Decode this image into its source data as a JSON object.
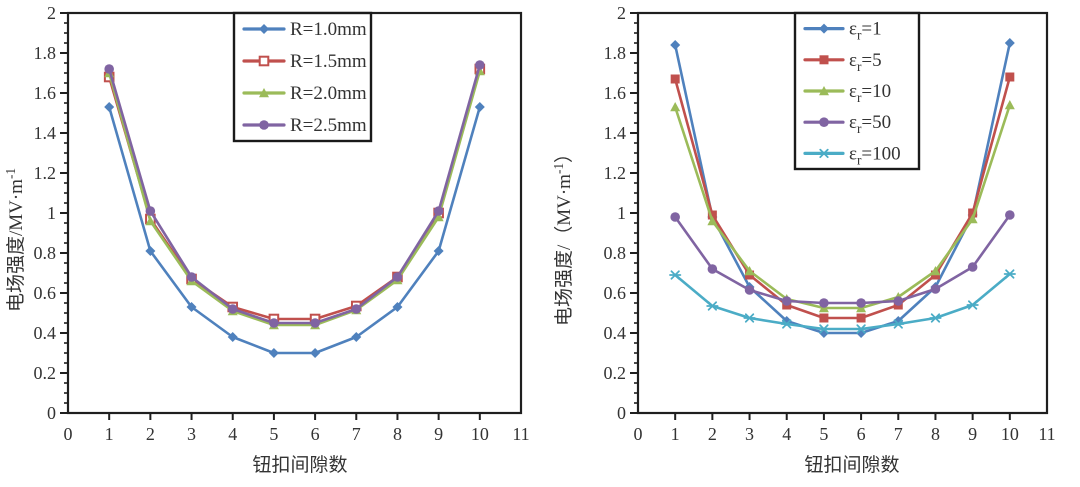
{
  "figure": {
    "background": "#ffffff",
    "axis_color": "#1f1f1f",
    "text_color": "#333333"
  },
  "chart_data": [
    {
      "id": "left-chart",
      "type": "line",
      "title": "",
      "xlabel": "钮扣间隙数",
      "ylabel": "电场强度/MV·m⁻¹",
      "ylabel_segments": [
        {
          "t": "电场强度/MV·m"
        },
        {
          "t": "-1",
          "sup": true
        }
      ],
      "xlim": [
        0,
        11
      ],
      "ylim": [
        0,
        2
      ],
      "xticks": [
        "0",
        "1",
        "2",
        "3",
        "4",
        "5",
        "6",
        "7",
        "8",
        "9",
        "10",
        "11"
      ],
      "yticks": [
        "0",
        "0.2",
        "0.4",
        "0.6",
        "0.8",
        "1",
        "1.2",
        "1.4",
        "1.6",
        "1.8",
        "2"
      ],
      "y_major_step": 0.2,
      "y_minor_step": 0.05,
      "grid": false,
      "legend_position": "top-center",
      "x": [
        1,
        2,
        3,
        4,
        5,
        6,
        7,
        8,
        9,
        10
      ],
      "series": [
        {
          "name": "R=1.0mm",
          "label_segments": [
            {
              "t": "R=1.0mm"
            }
          ],
          "color": "#4f81bd",
          "marker": "diamond",
          "values": [
            1.53,
            0.81,
            0.53,
            0.38,
            0.3,
            0.3,
            0.38,
            0.53,
            0.81,
            1.53
          ]
        },
        {
          "name": "R=1.5mm",
          "label_segments": [
            {
              "t": "R=1.5mm"
            }
          ],
          "color": "#c0504d",
          "marker": "square-open",
          "values": [
            1.68,
            0.97,
            0.67,
            0.53,
            0.47,
            0.47,
            0.535,
            0.68,
            1.0,
            1.72
          ]
        },
        {
          "name": "R=2.0mm",
          "label_segments": [
            {
              "t": "R=2.0mm"
            }
          ],
          "color": "#9bbb59",
          "marker": "triangle",
          "values": [
            1.7,
            0.96,
            0.66,
            0.51,
            0.44,
            0.44,
            0.515,
            0.665,
            0.98,
            1.71
          ]
        },
        {
          "name": "R=2.5mm",
          "label_segments": [
            {
              "t": "R=2.5mm"
            }
          ],
          "color": "#8064a2",
          "marker": "circle",
          "values": [
            1.72,
            1.01,
            0.68,
            0.52,
            0.45,
            0.45,
            0.52,
            0.68,
            1.01,
            1.74
          ]
        }
      ]
    },
    {
      "id": "right-chart",
      "type": "line",
      "title": "",
      "xlabel": "钮扣间隙数",
      "ylabel": "电场强度/（MV·m⁻¹）",
      "ylabel_segments": [
        {
          "t": "电场强度/（MV·m"
        },
        {
          "t": "-1",
          "sup": true
        },
        {
          "t": "）"
        }
      ],
      "xlim": [
        0,
        11
      ],
      "ylim": [
        0,
        2
      ],
      "xticks": [
        "0",
        "1",
        "2",
        "3",
        "4",
        "5",
        "6",
        "7",
        "8",
        "9",
        "10",
        "11"
      ],
      "yticks": [
        "0",
        "0.2",
        "0.4",
        "0.6",
        "0.8",
        "1",
        "1.2",
        "1.4",
        "1.6",
        "1.8",
        "2"
      ],
      "y_major_step": 0.2,
      "y_minor_step": 0.05,
      "grid": false,
      "legend_position": "top-center",
      "x": [
        1,
        2,
        3,
        4,
        5,
        6,
        7,
        8,
        9,
        10
      ],
      "series": [
        {
          "name": "εr=1",
          "label_segments": [
            {
              "t": "ε"
            },
            {
              "t": "r",
              "sub": true
            },
            {
              "t": "=1"
            }
          ],
          "color": "#4f81bd",
          "marker": "diamond",
          "values": [
            1.84,
            0.98,
            0.63,
            0.46,
            0.4,
            0.4,
            0.46,
            0.63,
            0.99,
            1.85
          ]
        },
        {
          "name": "εr=5",
          "label_segments": [
            {
              "t": "ε"
            },
            {
              "t": "r",
              "sub": true
            },
            {
              "t": "=5"
            }
          ],
          "color": "#c0504d",
          "marker": "square",
          "values": [
            1.67,
            0.99,
            0.69,
            0.54,
            0.475,
            0.475,
            0.54,
            0.69,
            1.0,
            1.68
          ]
        },
        {
          "name": "εr=10",
          "label_segments": [
            {
              "t": "ε"
            },
            {
              "t": "r",
              "sub": true
            },
            {
              "t": "=10"
            }
          ],
          "color": "#9bbb59",
          "marker": "triangle",
          "values": [
            1.53,
            0.96,
            0.71,
            0.57,
            0.525,
            0.525,
            0.58,
            0.71,
            0.97,
            1.54
          ]
        },
        {
          "name": "εr=50",
          "label_segments": [
            {
              "t": "ε"
            },
            {
              "t": "r",
              "sub": true
            },
            {
              "t": "=50"
            }
          ],
          "color": "#8064a2",
          "marker": "circle",
          "values": [
            0.98,
            0.72,
            0.615,
            0.56,
            0.55,
            0.55,
            0.56,
            0.62,
            0.73,
            0.99
          ]
        },
        {
          "name": "εr=100",
          "label_segments": [
            {
              "t": "ε"
            },
            {
              "t": "r",
              "sub": true
            },
            {
              "t": "=100"
            }
          ],
          "color": "#4bacc6",
          "marker": "asterisk",
          "values": [
            0.69,
            0.535,
            0.475,
            0.445,
            0.42,
            0.42,
            0.445,
            0.475,
            0.54,
            0.695
          ]
        }
      ]
    }
  ]
}
